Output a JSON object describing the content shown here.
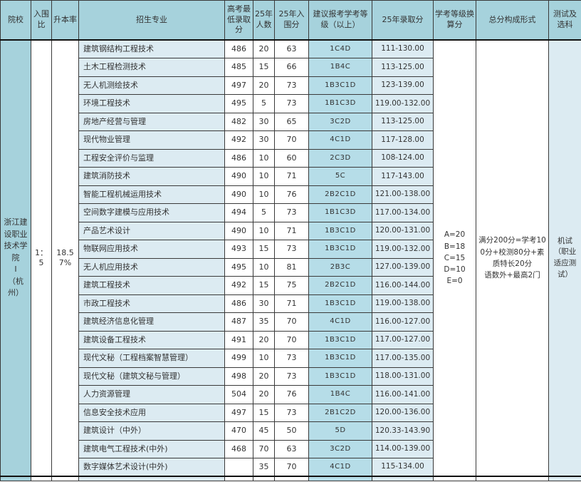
{
  "colors": {
    "header_bg": "#a6d2dc",
    "medium_cell_bg": "#b6dde8",
    "light_cell_bg": "#dcebf2",
    "text": "#333333"
  },
  "table": {
    "headers": [
      "院校",
      "入围比",
      "升本率",
      "招生专业",
      "高考最低录取分",
      "25年人数",
      "25年入围分",
      "建议报考学考等级（以上）",
      "25年录取分",
      "学考等级换算分",
      "总分构成形式",
      "测试及选科"
    ],
    "college": {
      "name": "浙江建设职业技术学院\nI\n（杭州）",
      "shortlist_ratio": "1：5",
      "promotion_rate": "18.57%",
      "grade_conversion": "A=20\nB=18\nC=15\nD=10\nE=0",
      "score_composition": "满分200分=学考100分+校测80分+素质特长20分\n语数外+最高2门",
      "test_and_subjects": "机试\n（职业适应测试）"
    },
    "rows": [
      {
        "major": "建筑钢结构工程技术",
        "min_score": "486",
        "count": "20",
        "entry_score": "63",
        "grade": "1C4D",
        "admit_range": "111-130.00"
      },
      {
        "major": "土木工程检测技术",
        "min_score": "485",
        "count": "15",
        "entry_score": "66",
        "grade": "1B4C",
        "admit_range": "113-125.00"
      },
      {
        "major": "无人机测绘技术",
        "min_score": "497",
        "count": "20",
        "entry_score": "73",
        "grade": "1B3C1D",
        "admit_range": "123-139.00"
      },
      {
        "major": "环境工程技术",
        "min_score": "495",
        "count": "5",
        "entry_score": "73",
        "grade": "1B1C3D",
        "admit_range": "119.00-132.00"
      },
      {
        "major": "房地产经营与管理",
        "min_score": "482",
        "count": "30",
        "entry_score": "65",
        "grade": "3C2D",
        "admit_range": "113-125.00"
      },
      {
        "major": "现代物业管理",
        "min_score": "492",
        "count": "30",
        "entry_score": "70",
        "grade": "4C1D",
        "admit_range": "117-128.00"
      },
      {
        "major": "工程安全评价与监理",
        "min_score": "486",
        "count": "10",
        "entry_score": "60",
        "grade": "2C3D",
        "admit_range": "108-124.00"
      },
      {
        "major": "建筑消防技术",
        "min_score": "490",
        "count": "10",
        "entry_score": "71",
        "grade": "5C",
        "admit_range": "117-143.00"
      },
      {
        "major": "智能工程机械运用技术",
        "min_score": "490",
        "count": "10",
        "entry_score": "76",
        "grade": "2B2C1D",
        "admit_range": "121.00-138.00"
      },
      {
        "major": "空间数字建模与应用技术",
        "min_score": "494",
        "count": "5",
        "entry_score": "73",
        "grade": "1B1C3D",
        "admit_range": "117.00-134.00"
      },
      {
        "major": "产品艺术设计",
        "min_score": "490",
        "count": "10",
        "entry_score": "71",
        "grade": "1B3C1D",
        "admit_range": "120.00-131.00"
      },
      {
        "major": "物联网应用技术",
        "min_score": "493",
        "count": "15",
        "entry_score": "73",
        "grade": "1B3C1D",
        "admit_range": "119.00-132.00"
      },
      {
        "major": "无人机应用技术",
        "min_score": "495",
        "count": "10",
        "entry_score": "81",
        "grade": "2B3C",
        "admit_range": "127.00-139.00"
      },
      {
        "major": "建筑工程技术",
        "min_score": "492",
        "count": "15",
        "entry_score": "75",
        "grade": "2B2C1D",
        "admit_range": "116.00-144.00"
      },
      {
        "major": "市政工程技术",
        "min_score": "486",
        "count": "30",
        "entry_score": "71",
        "grade": "1B3C1D",
        "admit_range": "119.00-138.00"
      },
      {
        "major": "建筑经济信息化管理",
        "min_score": "487",
        "count": "35",
        "entry_score": "70",
        "grade": "4C1D",
        "admit_range": "116.00-127.00"
      },
      {
        "major": "建筑设备工程技术",
        "min_score": "491",
        "count": "20",
        "entry_score": "70",
        "grade": "1B3C1D",
        "admit_range": "117.00-127.00"
      },
      {
        "major": "现代文秘（工程档案智慧管理）",
        "min_score": "499",
        "count": "10",
        "entry_score": "73",
        "grade": "1B3C1D",
        "admit_range": "117.00-135.00"
      },
      {
        "major": "现代文秘（建筑文秘与管理）",
        "min_score": "498",
        "count": "20",
        "entry_score": "73",
        "grade": "1B3C1D",
        "admit_range": "118.00-131.00"
      },
      {
        "major": "人力资源管理",
        "min_score": "504",
        "count": "20",
        "entry_score": "76",
        "grade": "1B4C",
        "admit_range": "116.00-141.00"
      },
      {
        "major": "信息安全技术应用",
        "min_score": "497",
        "count": "15",
        "entry_score": "73",
        "grade": "2B1C2D",
        "admit_range": "120.00-136.00"
      },
      {
        "major": "建筑设计（中外）",
        "min_score": "470",
        "count": "45",
        "entry_score": "50",
        "grade": "5D",
        "admit_range": "120.33-143.90"
      },
      {
        "major": "建筑电气工程技术(中外)",
        "min_score": "468",
        "count": "70",
        "entry_score": "63",
        "grade": "3C2D",
        "admit_range": "114.00-139.00"
      },
      {
        "major": "数字媒体艺术设计(中外)",
        "min_score": "",
        "count": "35",
        "entry_score": "70",
        "grade": "4C1D",
        "admit_range": "115-134.00"
      }
    ]
  }
}
